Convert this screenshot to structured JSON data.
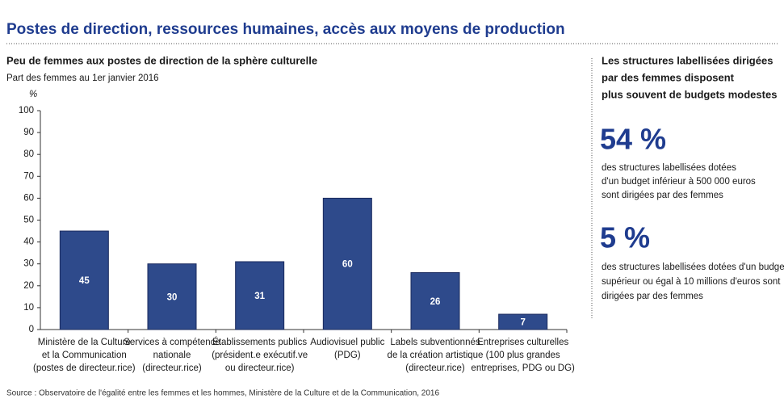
{
  "header": {
    "title": "Postes de direction, ressources humaines, accès aux moyens de production"
  },
  "chart_data": {
    "type": "bar",
    "title": "Peu de femmes aux postes de direction de la sphère culturelle",
    "subtitle": "Part des femmes au 1er janvier 2016",
    "y_unit": "%",
    "categories": [
      [
        "Ministère de la Culture",
        "et la Communication",
        "(postes de directeur.rice)"
      ],
      [
        "Services à compétence",
        "nationale",
        "(directeur.rice)"
      ],
      [
        "Établissements publics",
        "(président.e exécutif.ve",
        "ou directeur.rice)"
      ],
      [
        "Audiovisuel public",
        "(PDG)"
      ],
      [
        "Labels subventionnés",
        "de la création artistique",
        "(directeur.rice)"
      ],
      [
        "Entreprises culturelles",
        "(100 plus grandes",
        "entreprises, PDG ou DG)"
      ]
    ],
    "values": [
      45,
      30,
      31,
      60,
      26,
      7
    ],
    "color": "#2e4a8b",
    "ylim": [
      0,
      100
    ],
    "yticks": [
      0,
      10,
      20,
      30,
      40,
      50,
      60,
      70,
      80,
      90,
      100
    ]
  },
  "side": {
    "heading": [
      "Les structures labellisées dirigées",
      "par des femmes disposent",
      "plus souvent de budgets modestes"
    ],
    "stats": [
      {
        "value": "54 %",
        "text": [
          "des structures labellisées dotées",
          "d'un budget inférieur à 500 000 euros",
          "sont dirigées par des femmes"
        ]
      },
      {
        "value": "5 %",
        "text": [
          "des structures labellisées dotées d'un budget",
          "supérieur ou égal à 10 millions d'euros sont",
          "dirigées par des femmes"
        ]
      }
    ]
  },
  "source": "Source : Observatoire de l'égalité entre les femmes et les hommes, Ministère de la Culture et de la Communication, 2016"
}
